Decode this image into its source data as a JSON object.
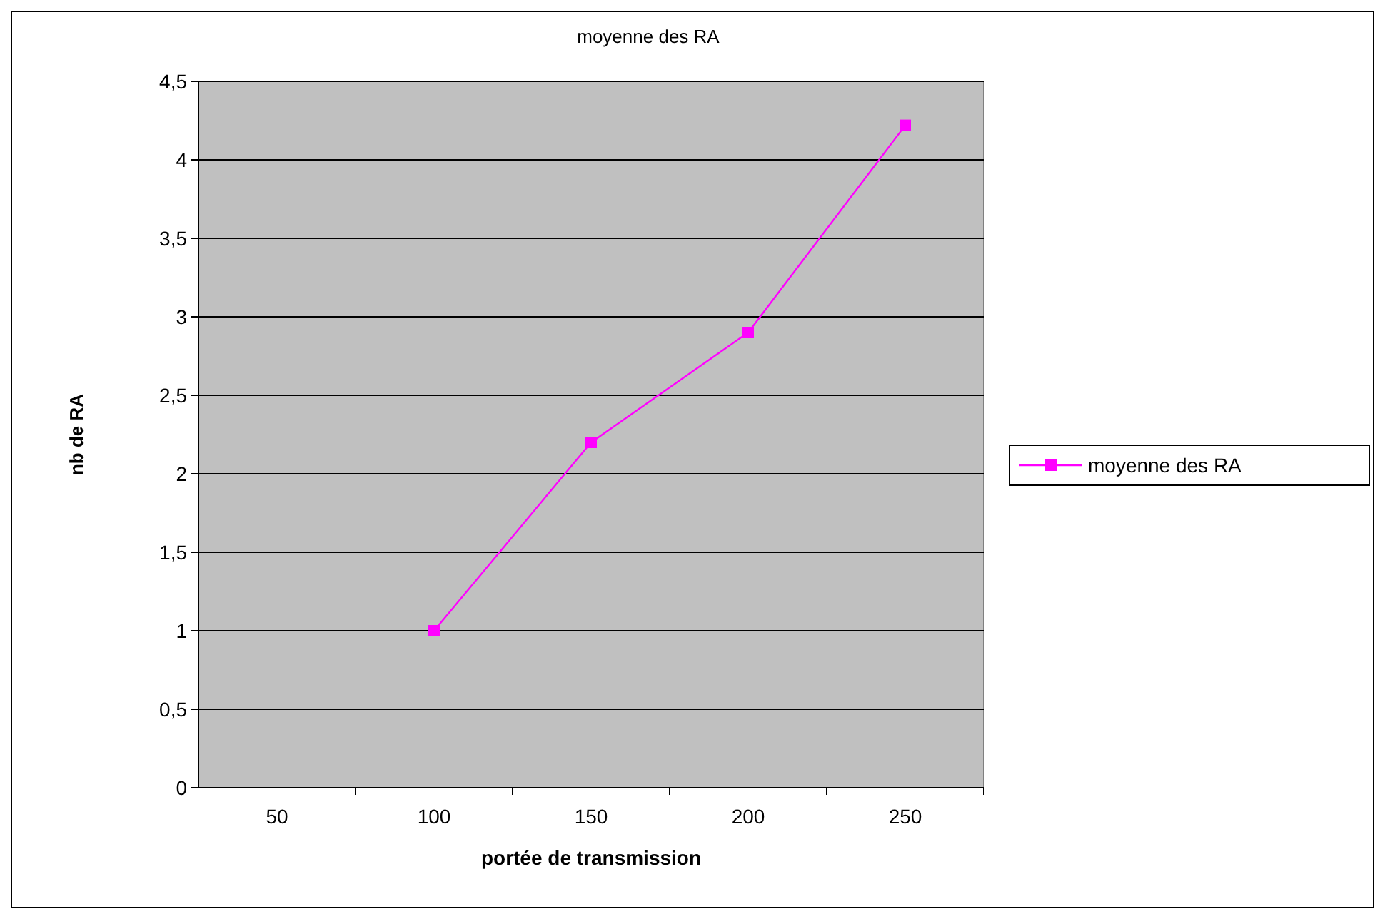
{
  "chart_data": {
    "type": "line",
    "title": "moyenne des RA",
    "xlabel": "portée de transmission",
    "ylabel": "nb de RA",
    "categories": [
      "50",
      "100",
      "150",
      "200",
      "250"
    ],
    "series": [
      {
        "name": "moyenne des RA",
        "color": "#ff00ff",
        "values": [
          null,
          1,
          2.2,
          2.9,
          4.22
        ]
      }
    ],
    "ylim": [
      0,
      4.5
    ],
    "yticks": [
      0,
      {
        "value": 0.5,
        "label": "0,5"
      },
      1,
      {
        "value": 1.5,
        "label": "1,5"
      },
      2,
      {
        "value": 2.5,
        "label": "2,5"
      },
      3,
      {
        "value": 3.5,
        "label": "3,5"
      },
      4,
      {
        "value": 4.5,
        "label": "4,5"
      }
    ],
    "grid": "y",
    "legend": "right",
    "marker": "square",
    "line_style": "solid"
  }
}
